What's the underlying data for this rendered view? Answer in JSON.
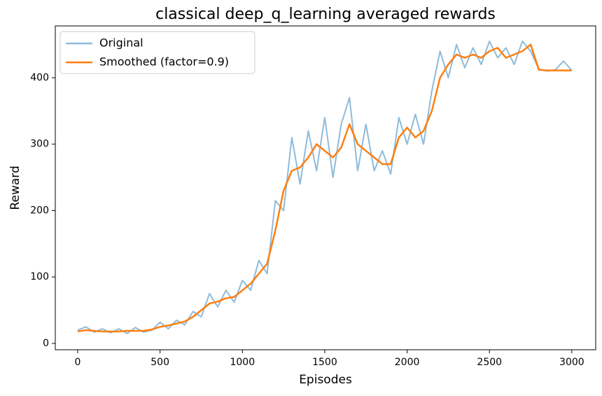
{
  "chart_data": {
    "type": "line",
    "title": "classical deep_q_learning averaged rewards",
    "x_label": "Episodes",
    "y_label": "Reward",
    "x": [
      0,
      50,
      100,
      150,
      200,
      250,
      300,
      350,
      400,
      450,
      500,
      550,
      600,
      650,
      700,
      750,
      800,
      850,
      900,
      950,
      1000,
      1050,
      1100,
      1150,
      1200,
      1250,
      1300,
      1350,
      1400,
      1450,
      1500,
      1550,
      1600,
      1650,
      1700,
      1750,
      1800,
      1850,
      1900,
      1950,
      2000,
      2050,
      2100,
      2150,
      2200,
      2250,
      2300,
      2350,
      2400,
      2450,
      2500,
      2550,
      2600,
      2650,
      2700,
      2750,
      2800,
      2850,
      2900,
      2950,
      3000
    ],
    "series": [
      {
        "name": "Original",
        "color": "#8fbbd9",
        "values": [
          20,
          25,
          17,
          22,
          16,
          22,
          15,
          24,
          17,
          20,
          32,
          22,
          35,
          28,
          48,
          40,
          75,
          55,
          80,
          62,
          95,
          80,
          125,
          105,
          215,
          200,
          310,
          240,
          320,
          260,
          340,
          250,
          330,
          370,
          260,
          330,
          260,
          290,
          255,
          340,
          300,
          345,
          300,
          380,
          440,
          400,
          450,
          415,
          445,
          420,
          455,
          430,
          445,
          420,
          455,
          440,
          413,
          410,
          412,
          425,
          411
        ]
      },
      {
        "name": "Smoothed (factor=0.9)",
        "color": "#ff7f0e",
        "values": [
          18,
          20,
          19,
          18,
          18,
          18,
          19,
          19,
          19,
          21,
          25,
          27,
          30,
          33,
          40,
          50,
          60,
          63,
          68,
          70,
          80,
          90,
          105,
          120,
          170,
          230,
          260,
          265,
          280,
          300,
          290,
          280,
          295,
          330,
          300,
          290,
          280,
          270,
          270,
          310,
          325,
          310,
          320,
          350,
          400,
          420,
          435,
          430,
          435,
          430,
          440,
          445,
          430,
          435,
          440,
          450,
          412,
          411,
          411,
          411,
          411
        ]
      }
    ],
    "xlim": [
      -136,
      3145
    ],
    "ylim": [
      -9.5,
      478
    ],
    "xticks": [
      0,
      500,
      1000,
      1500,
      2000,
      2500,
      3000
    ],
    "yticks": [
      0,
      100,
      200,
      300,
      400
    ],
    "legend": "upper-left",
    "grid": false
  }
}
